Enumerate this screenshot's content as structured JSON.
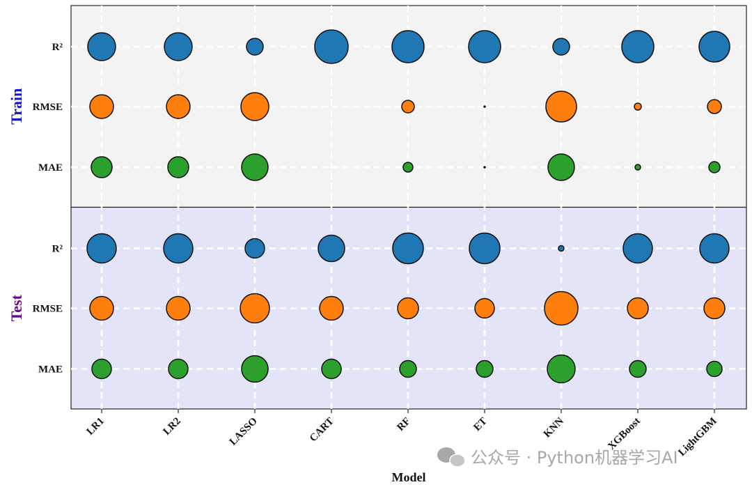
{
  "chart_data": {
    "type": "scatter",
    "subtype": "bubble-matrix",
    "xlabel": "Model",
    "models": [
      "LR1",
      "LR2",
      "LASSO",
      "CART",
      "RF",
      "ET",
      "KNN",
      "XGBoost",
      "LightGBM"
    ],
    "metrics": [
      "R²",
      "RMSE",
      "MAE"
    ],
    "metric_colors": {
      "R²": "#1f77b4",
      "RMSE": "#ff7f0e",
      "MAE": "#2ca02c"
    },
    "grid": true,
    "panels": [
      {
        "label": "Train",
        "label_color": "#1515c8",
        "background": "#f3f3f3",
        "bubble_size": {
          "R²": [
            1.0,
            1.0,
            0.6,
            1.2,
            1.15,
            1.15,
            0.6,
            1.15,
            1.1
          ],
          "RMSE": [
            0.85,
            0.85,
            1.0,
            0.0,
            0.45,
            0.05,
            1.1,
            0.25,
            0.5
          ],
          "MAE": [
            0.75,
            0.75,
            0.95,
            0.0,
            0.35,
            0.05,
            0.95,
            0.2,
            0.4
          ]
        }
      },
      {
        "label": "Test",
        "label_color": "#6a0a8a",
        "background": "#e4e4f8",
        "bubble_size": {
          "R²": [
            1.05,
            1.05,
            0.7,
            0.95,
            1.1,
            1.1,
            0.2,
            1.05,
            1.05
          ],
          "RMSE": [
            0.85,
            0.85,
            1.05,
            0.85,
            0.75,
            0.7,
            1.2,
            0.75,
            0.75
          ],
          "MAE": [
            0.7,
            0.7,
            0.95,
            0.7,
            0.6,
            0.6,
            1.0,
            0.6,
            0.55
          ]
        }
      }
    ]
  },
  "watermark": "公众号 · Python机器学习AI"
}
